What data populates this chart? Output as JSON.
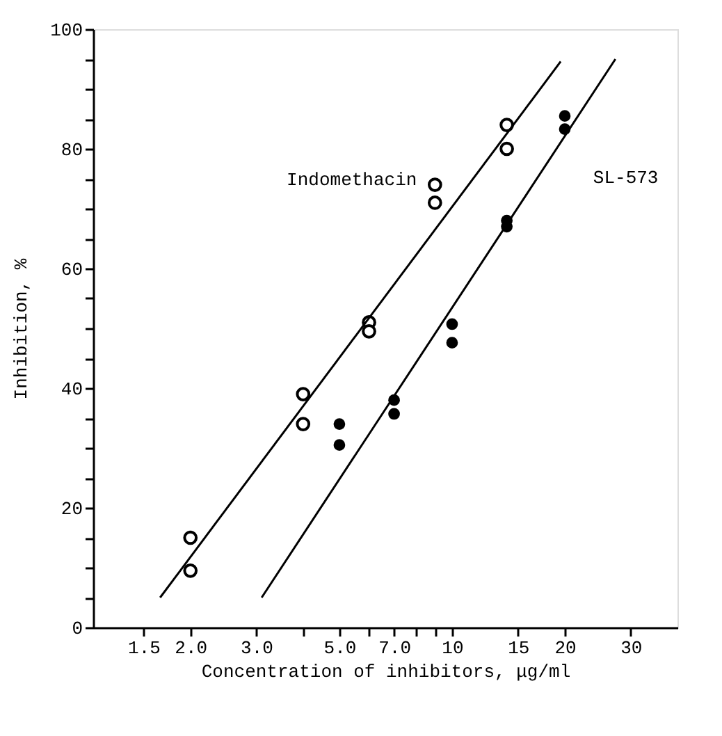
{
  "chart_data": {
    "type": "scatter",
    "xlabel": "Concentration of inhibitors, μg/ml",
    "ylabel": "Inhibition, %",
    "log": "x",
    "xlim": [
      1.1,
      40
    ],
    "ylim": [
      0,
      100
    ],
    "xticks": [
      1.5,
      {
        "value": 2,
        "label": "2.0"
      },
      {
        "value": 3,
        "label": "3.0"
      },
      {
        "value": 4,
        "label": null
      },
      {
        "value": 5,
        "label": "5.0"
      },
      {
        "value": 6,
        "label": null
      },
      {
        "value": 7,
        "label": "7.0"
      },
      {
        "value": 8,
        "label": null
      },
      {
        "value": 9,
        "label": null
      },
      10,
      15,
      20,
      30
    ],
    "yticks": [
      0,
      {
        "value": 5,
        "label": null
      },
      {
        "value": 10,
        "label": null
      },
      {
        "value": 15,
        "label": null
      },
      20,
      {
        "value": 25,
        "label": null
      },
      {
        "value": 30,
        "label": null
      },
      {
        "value": 35,
        "label": null
      },
      40,
      {
        "value": 45,
        "label": null
      },
      {
        "value": 50,
        "label": null
      },
      {
        "value": 55,
        "label": null
      },
      60,
      {
        "value": 65,
        "label": null
      },
      {
        "value": 70,
        "label": null
      },
      {
        "value": 75,
        "label": null
      },
      80,
      {
        "value": 85,
        "label": null
      },
      {
        "value": 90,
        "label": null
      },
      {
        "value": 95,
        "label": null
      },
      100
    ],
    "grid": false,
    "marker": "circle",
    "series": [
      {
        "color": "#000000",
        "x": [
          2,
          2,
          4,
          4,
          6,
          6,
          9,
          9,
          14,
          14
        ],
        "values": [
          15,
          9.5,
          39,
          34,
          51,
          49.5,
          74,
          71,
          84,
          80
        ]
      },
      {
        "color": "#000000",
        "x": [
          5,
          5,
          7,
          7,
          10,
          10,
          14,
          14,
          20,
          20
        ],
        "values": [
          34,
          30.5,
          38,
          35.7,
          50.7,
          47.6,
          68,
          67,
          85.5,
          83.3
        ]
      },
      {
        "type": "line",
        "color": "#000000",
        "line_style": "solid",
        "marker": "none",
        "x": [
          1.66,
          19.5
        ],
        "values": [
          5,
          94.6
        ]
      },
      {
        "type": "line",
        "color": "#000000",
        "line_style": "solid",
        "marker": "none",
        "x": [
          3.1,
          27.3
        ],
        "values": [
          5,
          95
        ]
      }
    ],
    "annotations": [
      "Indomethacin",
      "SL-573"
    ]
  }
}
